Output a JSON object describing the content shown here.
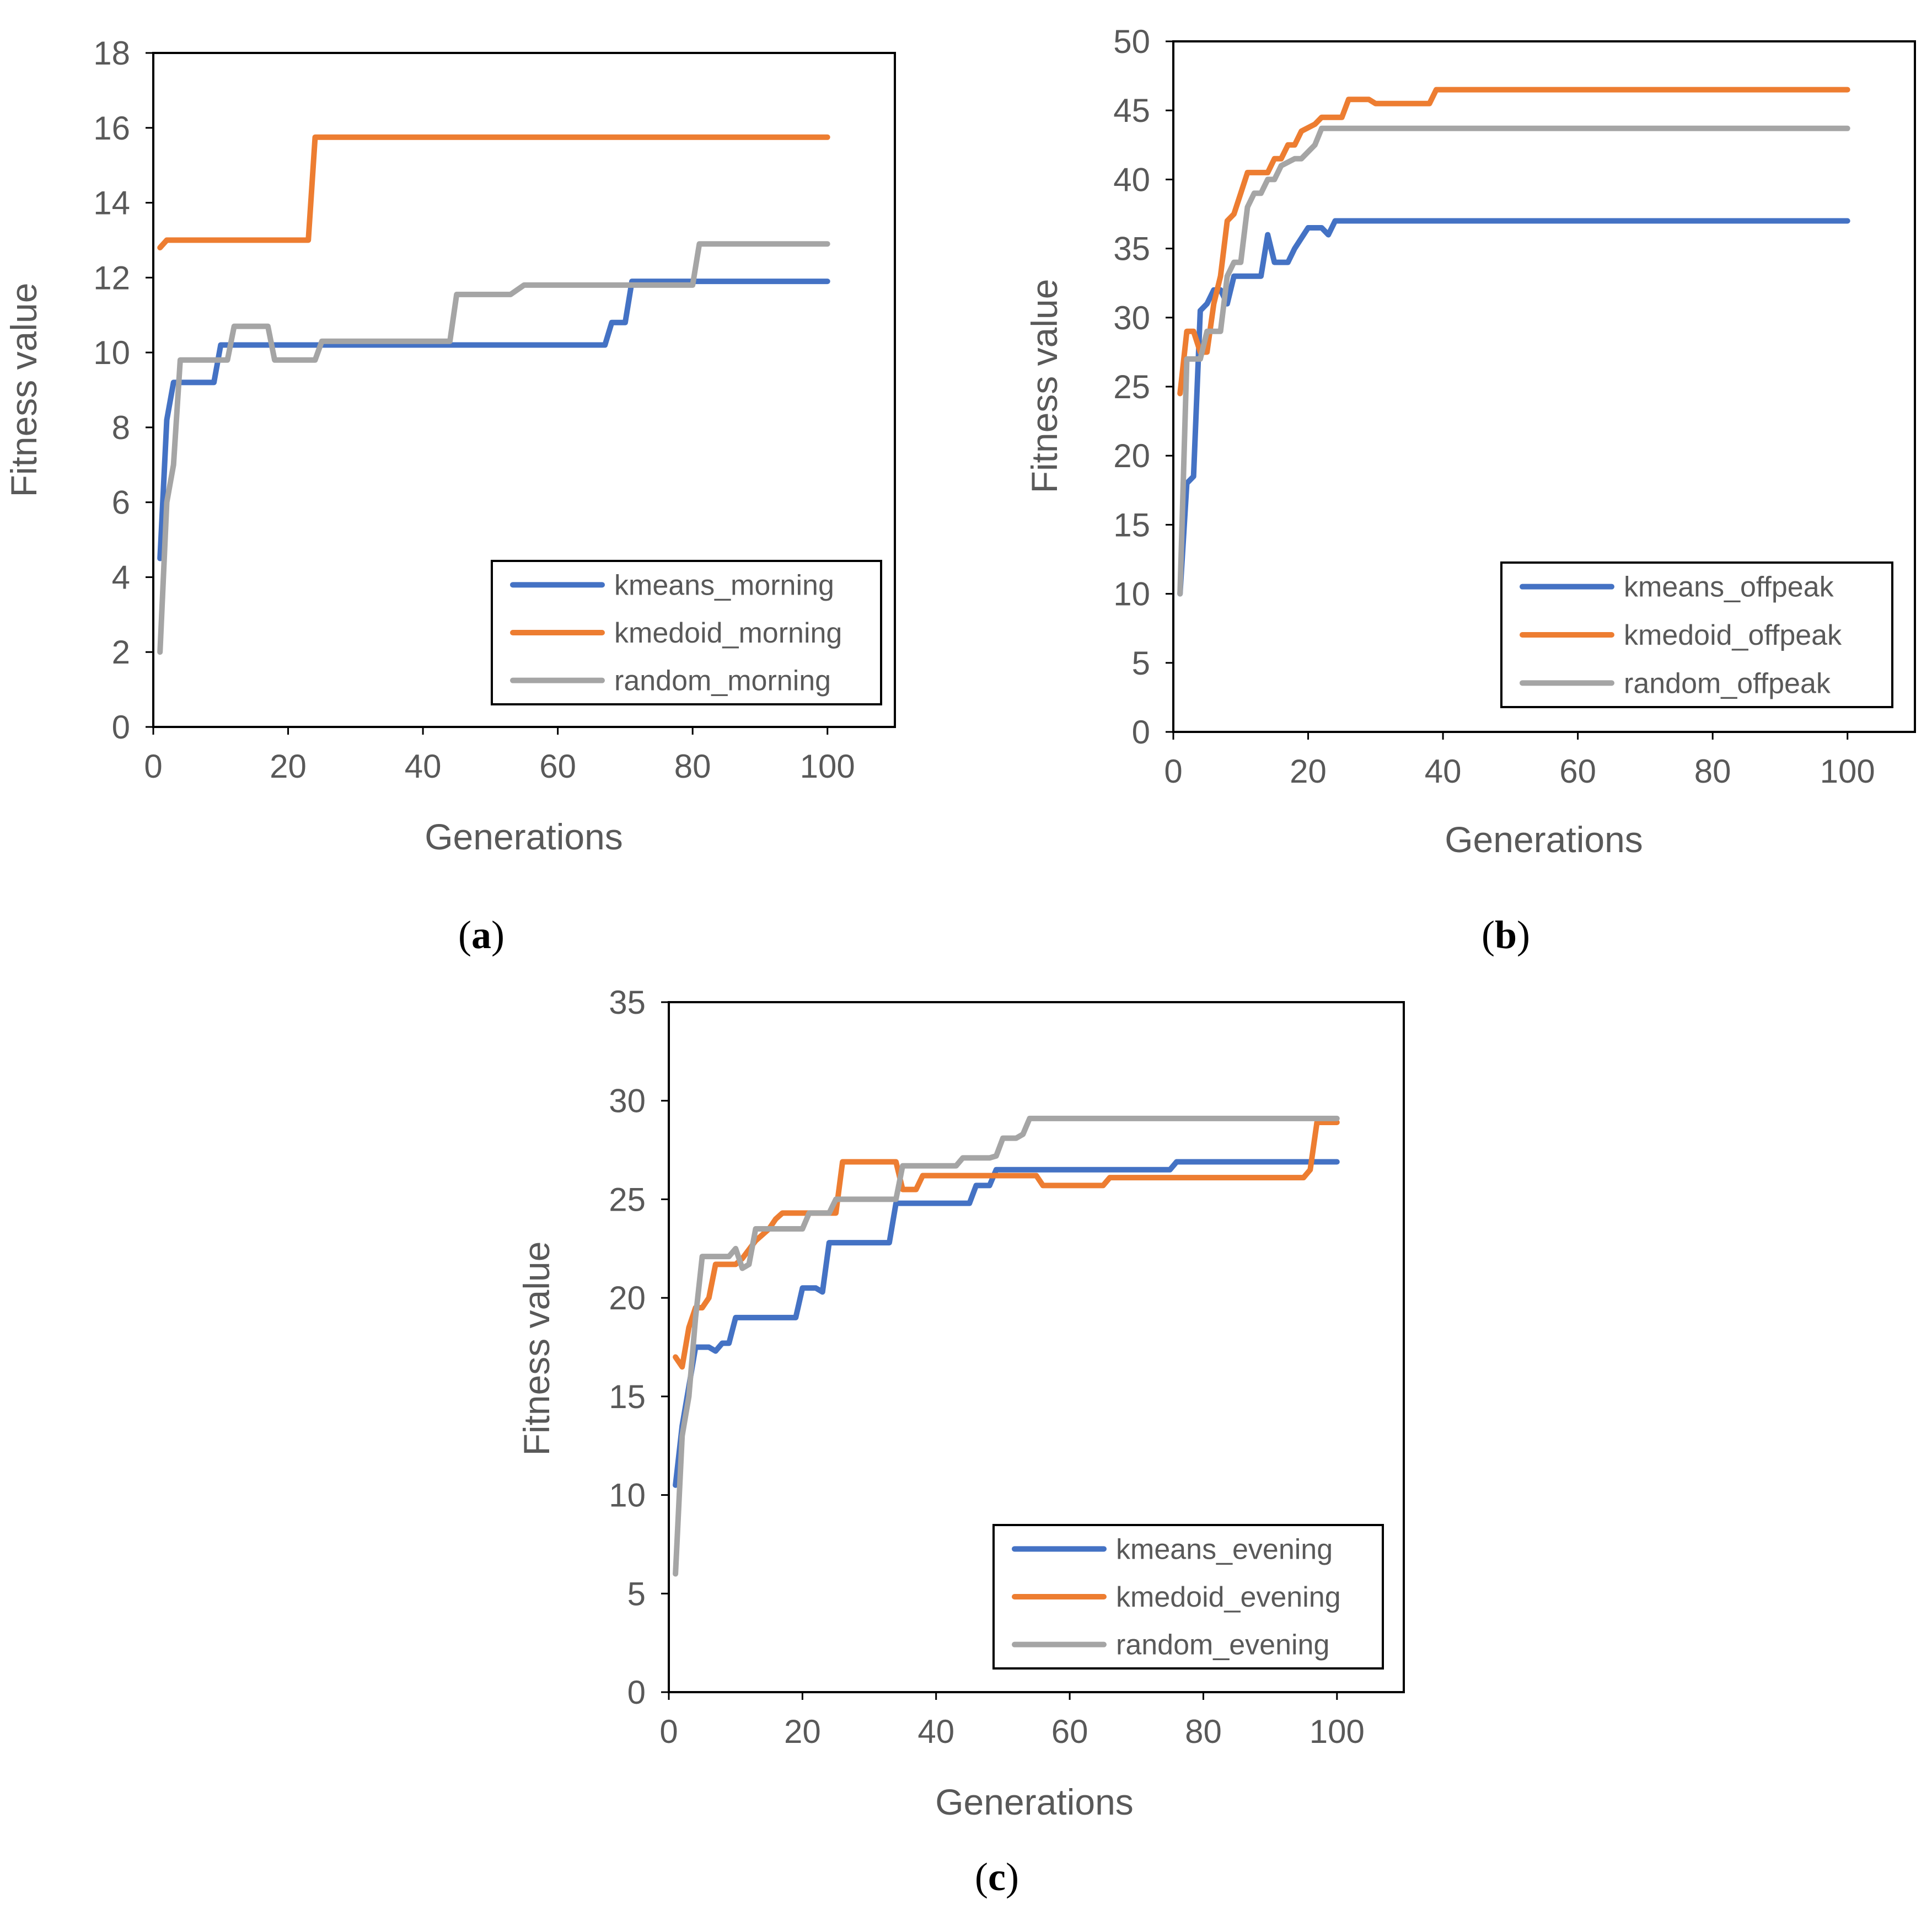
{
  "colors": {
    "kmeans": "#4472C4",
    "kmedoid": "#ED7D31",
    "random": "#A5A5A5",
    "axis": "#000000",
    "text": "#595959"
  },
  "chart_data": [
    {
      "type": "line",
      "id": "a",
      "caption": {
        "open": "(",
        "letter": "a",
        "close": ")"
      },
      "xlabel": "Generations",
      "ylabel": "Fitness value",
      "xlim": [
        0,
        110
      ],
      "ylim": [
        0,
        18
      ],
      "xticks": [
        0,
        20,
        40,
        60,
        80,
        100
      ],
      "yticks": [
        0,
        2,
        4,
        6,
        8,
        10,
        12,
        14,
        16,
        18
      ],
      "legend_position": "bottom-right",
      "series": [
        {
          "name": "kmeans_morning",
          "color": "#4472C4",
          "points": [
            [
              1,
              4.5
            ],
            [
              2,
              8.2
            ],
            [
              3,
              9.2
            ],
            [
              9,
              9.2
            ],
            [
              10,
              10.2
            ],
            [
              67,
              10.2
            ],
            [
              68,
              10.8
            ],
            [
              70,
              10.8
            ],
            [
              71,
              11.9
            ],
            [
              100,
              11.9
            ]
          ]
        },
        {
          "name": "kmedoid_morning",
          "color": "#ED7D31",
          "points": [
            [
              1,
              12.8
            ],
            [
              2,
              13.0
            ],
            [
              23,
              13.0
            ],
            [
              24,
              15.75
            ],
            [
              100,
              15.75
            ]
          ]
        },
        {
          "name": "random_morning",
          "color": "#A5A5A5",
          "points": [
            [
              1,
              2.0
            ],
            [
              2,
              6.0
            ],
            [
              3,
              7.0
            ],
            [
              4,
              9.8
            ],
            [
              11,
              9.8
            ],
            [
              12,
              10.7
            ],
            [
              17,
              10.7
            ],
            [
              18,
              9.8
            ],
            [
              24,
              9.8
            ],
            [
              25,
              10.3
            ],
            [
              44,
              10.3
            ],
            [
              45,
              11.55
            ],
            [
              53,
              11.55
            ],
            [
              55,
              11.8
            ],
            [
              80,
              11.8
            ],
            [
              81,
              12.9
            ],
            [
              100,
              12.9
            ]
          ]
        }
      ]
    },
    {
      "type": "line",
      "id": "b",
      "caption": {
        "open": "(",
        "letter": "b",
        "close": ")"
      },
      "xlabel": "Generations",
      "ylabel": "Fitness value",
      "xlim": [
        0,
        110
      ],
      "ylim": [
        0,
        50
      ],
      "xticks": [
        0,
        20,
        40,
        60,
        80,
        100
      ],
      "yticks": [
        0,
        5,
        10,
        15,
        20,
        25,
        30,
        35,
        40,
        45,
        50
      ],
      "legend_position": "bottom-right",
      "series": [
        {
          "name": "kmeans_offpeak",
          "color": "#4472C4",
          "points": [
            [
              1,
              10
            ],
            [
              2,
              18
            ],
            [
              3,
              18.5
            ],
            [
              4,
              30.5
            ],
            [
              5,
              31
            ],
            [
              6,
              32
            ],
            [
              7,
              32
            ],
            [
              8,
              31
            ],
            [
              9,
              33
            ],
            [
              10,
              33
            ],
            [
              13,
              33
            ],
            [
              14,
              36
            ],
            [
              15,
              34
            ],
            [
              16,
              34
            ],
            [
              17,
              34
            ],
            [
              18,
              35
            ],
            [
              20,
              36.5
            ],
            [
              21,
              36.5
            ],
            [
              22,
              36.5
            ],
            [
              23,
              36
            ],
            [
              24,
              37
            ],
            [
              100,
              37
            ]
          ]
        },
        {
          "name": "kmedoid_offpeak",
          "color": "#ED7D31",
          "points": [
            [
              1,
              24.5
            ],
            [
              2,
              29
            ],
            [
              3,
              29
            ],
            [
              4,
              27.5
            ],
            [
              5,
              27.5
            ],
            [
              6,
              31
            ],
            [
              7,
              33
            ],
            [
              8,
              37
            ],
            [
              9,
              37.5
            ],
            [
              10,
              39
            ],
            [
              11,
              40.5
            ],
            [
              14,
              40.5
            ],
            [
              15,
              41.5
            ],
            [
              16,
              41.5
            ],
            [
              17,
              42.5
            ],
            [
              18,
              42.5
            ],
            [
              19,
              43.5
            ],
            [
              21,
              44
            ],
            [
              22,
              44.5
            ],
            [
              25,
              44.5
            ],
            [
              26,
              45.8
            ],
            [
              29,
              45.8
            ],
            [
              30,
              45.5
            ],
            [
              38,
              45.5
            ],
            [
              39,
              46.5
            ],
            [
              100,
              46.5
            ]
          ]
        },
        {
          "name": "random_offpeak",
          "color": "#A5A5A5",
          "points": [
            [
              1,
              10
            ],
            [
              2,
              27
            ],
            [
              3,
              27
            ],
            [
              4,
              27
            ],
            [
              5,
              29
            ],
            [
              7,
              29
            ],
            [
              8,
              33
            ],
            [
              9,
              34
            ],
            [
              10,
              34
            ],
            [
              11,
              38
            ],
            [
              12,
              39
            ],
            [
              13,
              39
            ],
            [
              14,
              40
            ],
            [
              15,
              40
            ],
            [
              16,
              41
            ],
            [
              18,
              41.5
            ],
            [
              19,
              41.5
            ],
            [
              20,
              42
            ],
            [
              21,
              42.5
            ],
            [
              22,
              43.7
            ],
            [
              100,
              43.7
            ]
          ]
        }
      ]
    },
    {
      "type": "line",
      "id": "c",
      "caption": {
        "open": "(",
        "letter": "c",
        "close": ")"
      },
      "xlabel": "Generations",
      "ylabel": "Fitness value",
      "xlim": [
        0,
        110
      ],
      "ylim": [
        0,
        35
      ],
      "xticks": [
        0,
        20,
        40,
        60,
        80,
        100
      ],
      "yticks": [
        0,
        5,
        10,
        15,
        20,
        25,
        30,
        35
      ],
      "legend_position": "bottom-right",
      "series": [
        {
          "name": "kmeans_evening",
          "color": "#4472C4",
          "points": [
            [
              1,
              10.5
            ],
            [
              2,
              13.5
            ],
            [
              3,
              15.5
            ],
            [
              4,
              17.5
            ],
            [
              6,
              17.5
            ],
            [
              7,
              17.3
            ],
            [
              8,
              17.7
            ],
            [
              9,
              17.7
            ],
            [
              10,
              19
            ],
            [
              19,
              19
            ],
            [
              20,
              20.5
            ],
            [
              22,
              20.5
            ],
            [
              23,
              20.3
            ],
            [
              24,
              22.8
            ],
            [
              33,
              22.8
            ],
            [
              34,
              24.8
            ],
            [
              45,
              24.8
            ],
            [
              46,
              25.7
            ],
            [
              48,
              25.7
            ],
            [
              49,
              26.5
            ],
            [
              75,
              26.5
            ],
            [
              76,
              26.9
            ],
            [
              100,
              26.9
            ]
          ]
        },
        {
          "name": "kmedoid_evening",
          "color": "#ED7D31",
          "points": [
            [
              1,
              17
            ],
            [
              2,
              16.5
            ],
            [
              3,
              18.5
            ],
            [
              4,
              19.5
            ],
            [
              5,
              19.5
            ],
            [
              6,
              20
            ],
            [
              7,
              21.7
            ],
            [
              10,
              21.7
            ],
            [
              11,
              22
            ],
            [
              13,
              22.9
            ],
            [
              15,
              23.5
            ],
            [
              16,
              24
            ],
            [
              17,
              24.3
            ],
            [
              25,
              24.3
            ],
            [
              26,
              26.9
            ],
            [
              34,
              26.9
            ],
            [
              35,
              25.5
            ],
            [
              37,
              25.5
            ],
            [
              38,
              26.2
            ],
            [
              55,
              26.2
            ],
            [
              56,
              25.7
            ],
            [
              65,
              25.7
            ],
            [
              66,
              26.1
            ],
            [
              95,
              26.1
            ],
            [
              96,
              26.5
            ],
            [
              97,
              28.9
            ],
            [
              100,
              28.9
            ]
          ]
        },
        {
          "name": "random_evening",
          "color": "#A5A5A5",
          "points": [
            [
              1,
              6
            ],
            [
              2,
              13
            ],
            [
              3,
              15
            ],
            [
              4,
              19
            ],
            [
              5,
              22.1
            ],
            [
              9,
              22.1
            ],
            [
              10,
              22.5
            ],
            [
              11,
              21.5
            ],
            [
              12,
              21.7
            ],
            [
              13,
              23.5
            ],
            [
              20,
              23.5
            ],
            [
              21,
              24.3
            ],
            [
              24,
              24.3
            ],
            [
              25,
              25
            ],
            [
              34,
              25
            ],
            [
              35,
              26.7
            ],
            [
              43,
              26.7
            ],
            [
              44,
              27.1
            ],
            [
              48,
              27.1
            ],
            [
              49,
              27.2
            ],
            [
              50,
              28.1
            ],
            [
              52,
              28.1
            ],
            [
              53,
              28.3
            ],
            [
              54,
              29.1
            ],
            [
              100,
              29.1
            ]
          ]
        }
      ]
    }
  ]
}
